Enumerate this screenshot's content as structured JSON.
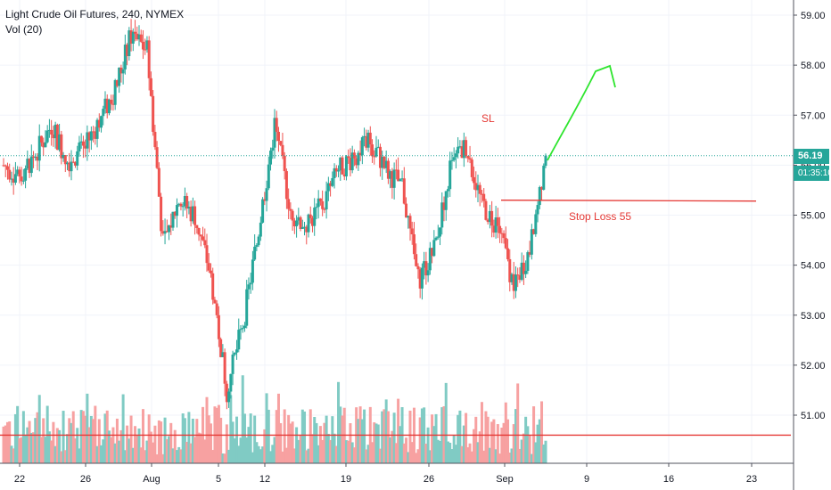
{
  "legend": {
    "title": "Light Crude Oil Futures, 240, NYMEX",
    "indicator": "Vol (20)"
  },
  "badges": {
    "price": "56.19",
    "timer": "01:35:10"
  },
  "annotations": {
    "sl_label": "SL",
    "stop_loss_label": "Stop Loss 55"
  },
  "colors": {
    "up": "#26a69a",
    "down": "#ef5350",
    "vol_up": "#80cbc4",
    "vol_down": "#f7a1a1",
    "drawing_red": "#e53935",
    "drawing_green": "#2ee52e",
    "last_price_line": "#26a69a"
  },
  "chart_data": {
    "type": "candlestick",
    "title": "Light Crude Oil Futures, 240, NYMEX",
    "x_ticks": [
      "22",
      "26",
      "Aug",
      "5",
      "12",
      "19",
      "26",
      "Sep",
      "9",
      "16",
      "23"
    ],
    "y_ticks": [
      59.0,
      58.0,
      57.0,
      56.0,
      55.0,
      54.0,
      53.0,
      52.0,
      51.0
    ],
    "ylim": [
      50.4,
      59.2
    ],
    "last_price": 56.19,
    "stop_loss": 55.3,
    "horizontal_line": 50.6,
    "price_path": [
      [
        "Jul 21",
        56.0
      ],
      [
        "Jul 22",
        55.8
      ],
      [
        "Jul 23",
        56.2
      ],
      [
        "Jul 24",
        56.8
      ],
      [
        "Jul 25",
        56.1
      ],
      [
        "Jul 26",
        56.3
      ],
      [
        "Jul 29",
        56.9
      ],
      [
        "Jul 30",
        57.5
      ],
      [
        "Jul 31",
        58.6
      ],
      [
        "Aug 1",
        58.3
      ],
      [
        "Aug 2",
        54.4
      ],
      [
        "Aug 5",
        55.3
      ],
      [
        "Aug 6",
        55.0
      ],
      [
        "Aug 7",
        53.8
      ],
      [
        "Aug 8",
        51.5
      ],
      [
        "Aug 9",
        52.8
      ],
      [
        "Aug 12",
        54.7
      ],
      [
        "Aug 13",
        56.8
      ],
      [
        "Aug 14",
        55.1
      ],
      [
        "Aug 15",
        54.8
      ],
      [
        "Aug 16",
        55.2
      ],
      [
        "Aug 19",
        55.9
      ],
      [
        "Aug 20",
        56.2
      ],
      [
        "Aug 21",
        56.5
      ],
      [
        "Aug 22",
        55.9
      ],
      [
        "Aug 23",
        55.6
      ],
      [
        "Aug 26",
        53.7
      ],
      [
        "Aug 27",
        54.3
      ],
      [
        "Aug 28",
        55.9
      ],
      [
        "Aug 29",
        56.4
      ],
      [
        "Aug 30",
        55.2
      ],
      [
        "Sep 2",
        54.8
      ],
      [
        "Sep 3",
        53.6
      ],
      [
        "Sep 4",
        54.3
      ],
      [
        "Sep 5",
        56.19
      ]
    ]
  }
}
